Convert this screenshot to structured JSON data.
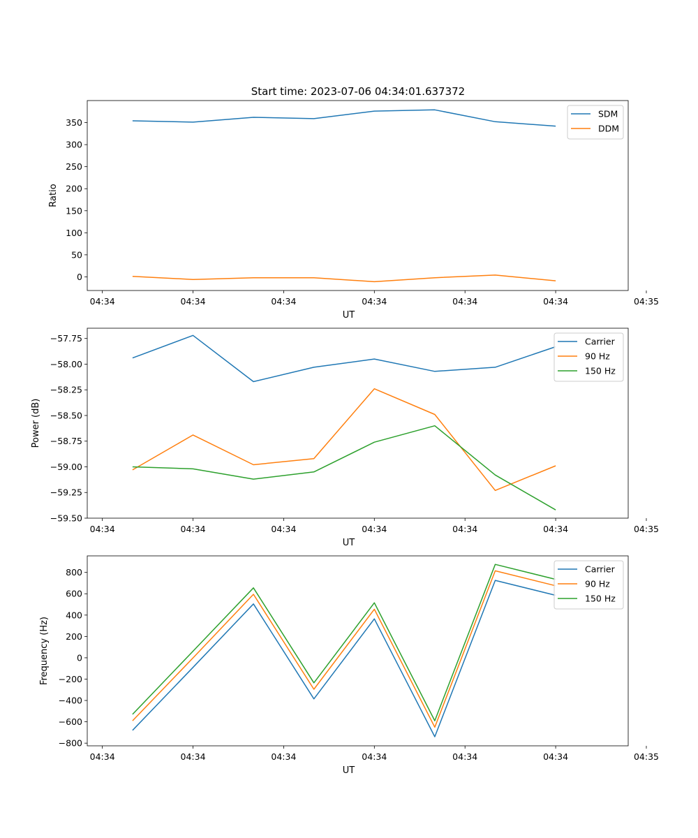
{
  "figure_title": "Start time: 2023-07-06 04:34:01.637372",
  "colors": {
    "blue": "#1f77b4",
    "orange": "#ff7f0e",
    "green": "#2ca02c"
  },
  "chart_data": [
    {
      "type": "line",
      "title": "Start time: 2023-07-06 04:34:01.637372",
      "xlabel": "UT",
      "ylabel": "Ratio",
      "x": [
        1,
        2,
        3,
        4,
        5,
        6,
        7,
        8
      ],
      "xlim": [
        0.25,
        9.2
      ],
      "xticks": [
        0.5,
        2,
        3.5,
        5,
        6.5,
        8,
        9.5
      ],
      "xtick_labels": [
        "04:34",
        "04:34",
        "04:34",
        "04:34",
        "04:34",
        "04:34",
        "04:35"
      ],
      "ylim": [
        -31,
        400
      ],
      "yticks": [
        0,
        50,
        100,
        150,
        200,
        250,
        300,
        350
      ],
      "ytick_labels": [
        "0",
        "50",
        "100",
        "150",
        "200",
        "250",
        "300",
        "350"
      ],
      "legend_position": "top-right",
      "series": [
        {
          "name": "SDM",
          "color": "#1f77b4",
          "values": [
            354,
            351,
            362,
            359,
            376,
            379,
            352,
            342
          ]
        },
        {
          "name": "DDM",
          "color": "#ff7f0e",
          "values": [
            1,
            -6,
            -2,
            -2,
            -11,
            -2,
            4,
            -9
          ]
        }
      ]
    },
    {
      "type": "line",
      "title": "",
      "xlabel": "UT",
      "ylabel": "Power (dB)",
      "x": [
        1,
        2,
        3,
        4,
        5,
        6,
        7,
        8
      ],
      "xlim": [
        0.25,
        9.2
      ],
      "xticks": [
        0.5,
        2,
        3.5,
        5,
        6.5,
        8,
        9.5
      ],
      "xtick_labels": [
        "04:34",
        "04:34",
        "04:34",
        "04:34",
        "04:34",
        "04:34",
        "04:35"
      ],
      "ylim": [
        -59.5,
        -57.65
      ],
      "yticks": [
        -57.75,
        -58.0,
        -58.25,
        -58.5,
        -58.75,
        -59.0,
        -59.25,
        -59.5
      ],
      "ytick_labels": [
        "−57.75",
        "−58.00",
        "−58.25",
        "−58.50",
        "−58.75",
        "−59.00",
        "−59.25",
        "−59.50"
      ],
      "legend_position": "top-right",
      "series": [
        {
          "name": "Carrier",
          "color": "#1f77b4",
          "values": [
            -57.94,
            -57.72,
            -58.17,
            -58.03,
            -57.95,
            -58.07,
            -58.03,
            -57.83
          ]
        },
        {
          "name": "90 Hz",
          "color": "#ff7f0e",
          "values": [
            -59.03,
            -58.69,
            -58.98,
            -58.92,
            -58.24,
            -58.49,
            -59.23,
            -58.99
          ]
        },
        {
          "name": "150 Hz",
          "color": "#2ca02c",
          "values": [
            -59.0,
            -59.02,
            -59.12,
            -59.05,
            -58.76,
            -58.6,
            -59.08,
            -59.42
          ]
        }
      ]
    },
    {
      "type": "line",
      "title": "",
      "xlabel": "UT",
      "ylabel": "Frequency (Hz)",
      "x": [
        1,
        2,
        3,
        4,
        5,
        6,
        7,
        8
      ],
      "xlim": [
        0.25,
        9.2
      ],
      "xticks": [
        0.5,
        2,
        3.5,
        5,
        6.5,
        8,
        9.5
      ],
      "xtick_labels": [
        "04:34",
        "04:34",
        "04:34",
        "04:34",
        "04:34",
        "04:34",
        "04:35"
      ],
      "ylim": [
        -825,
        955
      ],
      "yticks": [
        -800,
        -600,
        -400,
        -200,
        0,
        200,
        400,
        600,
        800
      ],
      "ytick_labels": [
        "−800",
        "−600",
        "−400",
        "−200",
        "0",
        "200",
        "400",
        "600",
        "800"
      ],
      "legend_position": "top-right",
      "series": [
        {
          "name": "Carrier",
          "color": "#1f77b4",
          "values": [
            -680,
            -90,
            505,
            -385,
            365,
            -740,
            725,
            585
          ]
        },
        {
          "name": "90 Hz",
          "color": "#ff7f0e",
          "values": [
            -590,
            -1,
            595,
            -295,
            455,
            -650,
            815,
            675
          ]
        },
        {
          "name": "150 Hz",
          "color": "#2ca02c",
          "values": [
            -530,
            62,
            655,
            -235,
            515,
            -590,
            875,
            735
          ]
        }
      ]
    }
  ]
}
